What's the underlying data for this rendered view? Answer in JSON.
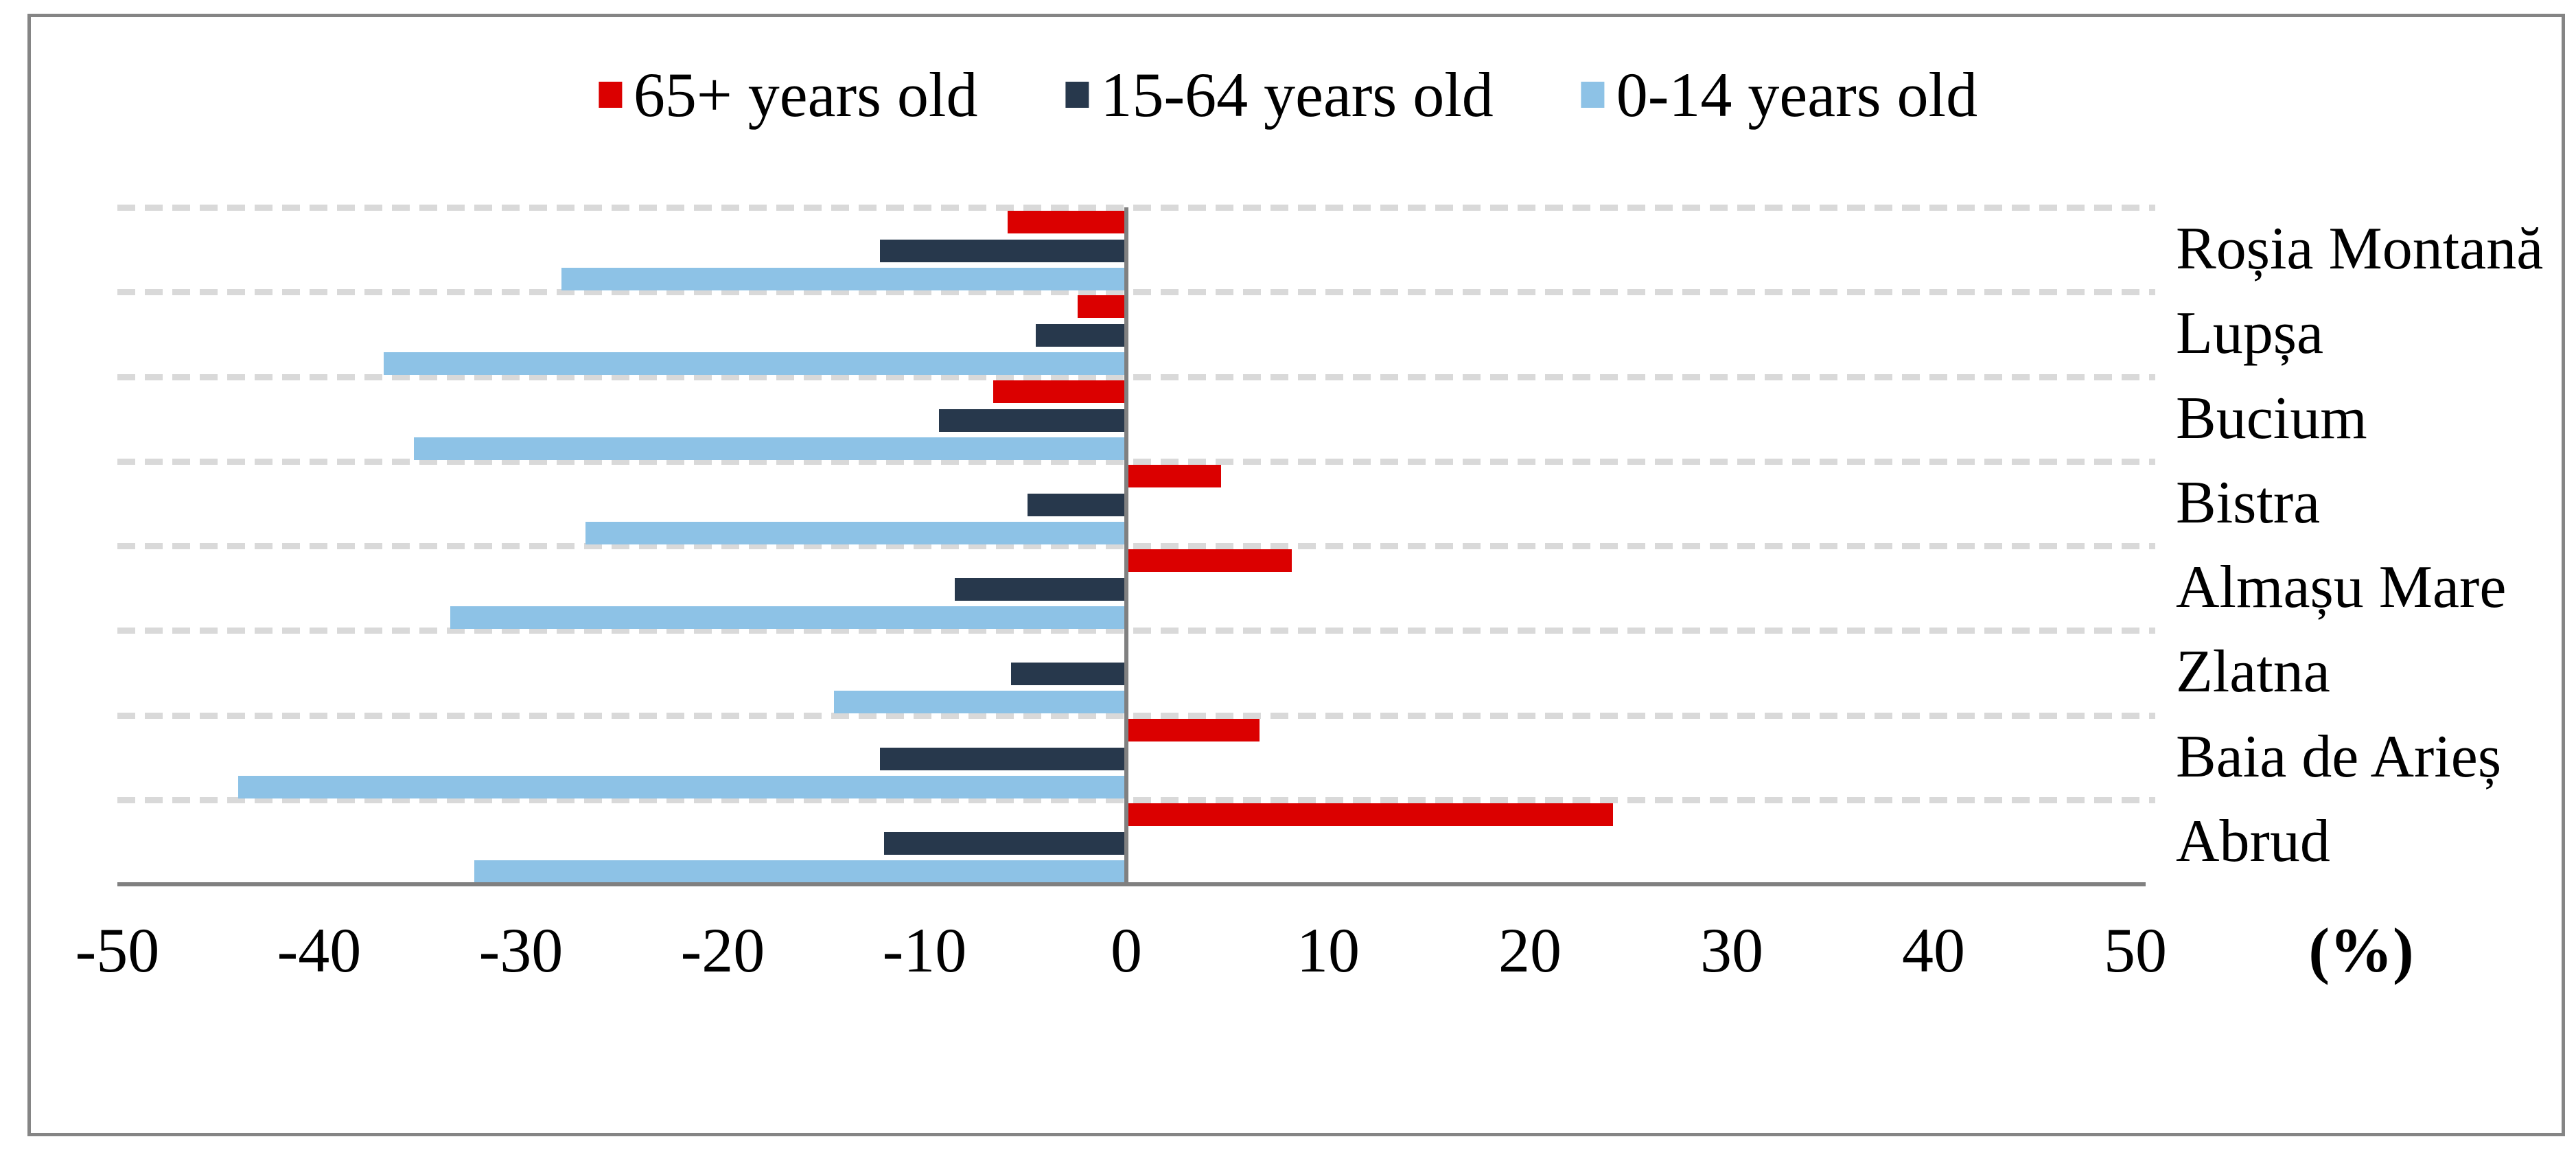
{
  "chart_data": {
    "type": "bar",
    "orientation": "horizontal",
    "title": "",
    "xlabel": "(%)",
    "ylabel": "",
    "xlim": [
      -50,
      50
    ],
    "x_ticks": [
      -50,
      -40,
      -30,
      -20,
      -10,
      0,
      10,
      20,
      30,
      40,
      50
    ],
    "grid": "horizontal-dashed",
    "legend_position": "top",
    "categories": [
      "Roșia Montană",
      "Lupșa",
      "Bucium",
      "Bistra",
      "Almașu Mare",
      "Zlatna",
      "Baia de Arieș",
      "Abrud"
    ],
    "series": [
      {
        "name": "65+ years old",
        "color": "#DB0000",
        "values": [
          -5.9,
          -2.4,
          -6.6,
          4.7,
          8.2,
          0,
          6.6,
          24.1
        ]
      },
      {
        "name": "15-64 years old",
        "color": "#27384C",
        "values": [
          -12.2,
          -4.5,
          -9.3,
          -4.9,
          -8.5,
          -5.7,
          -12.2,
          -12.0
        ]
      },
      {
        "name": "0-14 years old",
        "color": "#8DC2E6",
        "values": [
          -28.0,
          -36.8,
          -35.3,
          -26.8,
          -33.5,
          -14.5,
          -44.0,
          -32.3
        ]
      }
    ]
  },
  "colors": {
    "gridline": "#D9D9D9",
    "axis": "#808080",
    "frame_border": "#858585",
    "background": "#FFFFFF",
    "text": "#000000"
  }
}
